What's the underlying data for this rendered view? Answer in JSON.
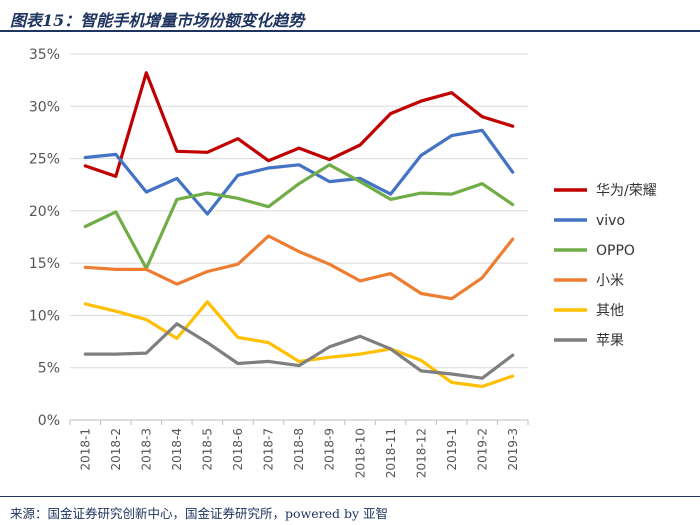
{
  "figure": {
    "title": "图表15：智能手机增量市场份额变化趋势",
    "source": "来源：国金证券研究创新中心，国金证券研究所，powered by 亚智"
  },
  "chart_data": {
    "type": "line",
    "title": "图表15：智能手机增量市场份额变化趋势",
    "xlabel": "",
    "ylabel": "",
    "ylim": [
      0,
      35
    ],
    "yticks": [
      "0%",
      "5%",
      "10%",
      "15%",
      "20%",
      "25%",
      "30%",
      "35%"
    ],
    "grid": "horizontal",
    "legend_position": "right",
    "categories": [
      "2018-1",
      "2018-2",
      "2018-3",
      "2018-4",
      "2018-5",
      "2018-6",
      "2018-7",
      "2018-8",
      "2018-9",
      "2018-10",
      "2018-11",
      "2018-12",
      "2019-1",
      "2019-2",
      "2019-3"
    ],
    "series": [
      {
        "name": "华为/荣耀",
        "color": "#c00000",
        "values": [
          24.3,
          23.3,
          33.2,
          25.7,
          25.6,
          26.9,
          24.8,
          26.0,
          24.9,
          26.3,
          29.3,
          30.5,
          31.3,
          29.0,
          28.1
        ]
      },
      {
        "name": "vivo",
        "color": "#4472c4",
        "values": [
          25.1,
          25.4,
          21.8,
          23.1,
          19.7,
          23.4,
          24.1,
          24.4,
          22.8,
          23.1,
          21.6,
          25.3,
          27.2,
          27.7,
          23.7
        ]
      },
      {
        "name": "OPPO",
        "color": "#70ad47",
        "values": [
          18.5,
          19.9,
          14.5,
          21.1,
          21.7,
          21.2,
          20.4,
          22.6,
          24.4,
          22.8,
          21.1,
          21.7,
          21.6,
          22.6,
          20.6
        ]
      },
      {
        "name": "小米",
        "color": "#ed7d31",
        "values": [
          14.6,
          14.4,
          14.4,
          13.0,
          14.2,
          14.9,
          17.6,
          16.1,
          14.9,
          13.3,
          14.0,
          12.1,
          11.6,
          13.6,
          17.3
        ]
      },
      {
        "name": "其他",
        "color": "#ffc000",
        "values": [
          11.1,
          10.4,
          9.6,
          7.8,
          11.3,
          7.9,
          7.4,
          5.6,
          6.0,
          6.3,
          6.8,
          5.7,
          3.6,
          3.2,
          4.2
        ]
      },
      {
        "name": "苹果",
        "color": "#7f7f7f",
        "values": [
          6.3,
          6.3,
          6.4,
          9.2,
          7.4,
          5.4,
          5.6,
          5.2,
          7.0,
          8.0,
          6.8,
          4.7,
          4.4,
          4.0,
          6.2
        ]
      }
    ]
  }
}
